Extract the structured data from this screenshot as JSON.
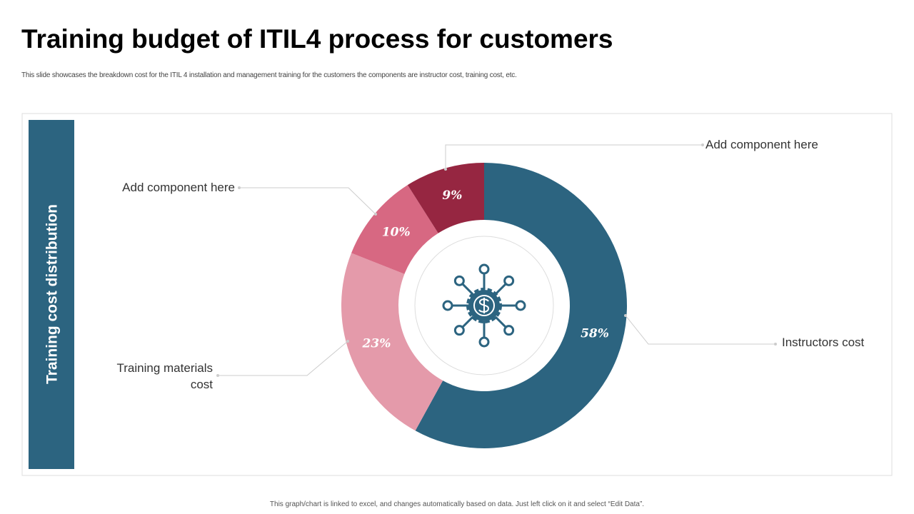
{
  "title": "Training budget of ITIL4 process for customers",
  "subtitle": "This slide showcases the breakdown cost for the ITIL 4 installation and management training for the customers the components are instructor cost, training cost, etc.",
  "footnote": "This graph/chart is linked to excel, and changes automatically based on data. Just left click on it and select “Edit Data”.",
  "chart_data": {
    "type": "donut",
    "title": "Training cost distribution",
    "categories": [
      "Instructors cost",
      "Training materials cost",
      "Add component here",
      "Add component here"
    ],
    "values": [
      58,
      23,
      10,
      9
    ],
    "value_labels": [
      "58%",
      "23%",
      "10%",
      "9%"
    ],
    "colors": [
      "#2c6480",
      "#e49aaa",
      "#d76882",
      "#962641"
    ]
  }
}
